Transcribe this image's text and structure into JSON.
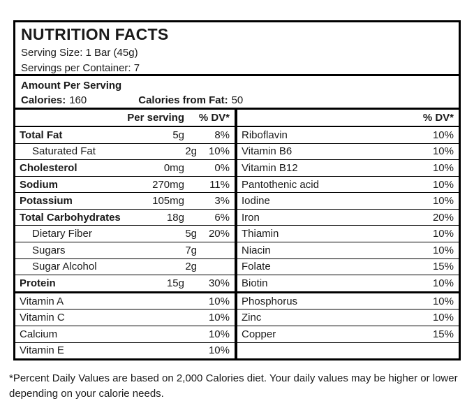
{
  "label": {
    "title": "NUTRITION FACTS",
    "serving_size": "Serving Size: 1 Bar (45g)",
    "servings_per_container": "Servings per Container: 7",
    "amount_per_serving": "Amount Per Serving",
    "calories_label": "Calories:",
    "calories_value": "160",
    "calories_from_fat_label": "Calories from Fat:",
    "calories_from_fat_value": "50"
  },
  "left_table": {
    "headers": {
      "name": "",
      "per_serving": "Per serving",
      "dv": "% DV*"
    },
    "rows": [
      {
        "name": "Total Fat",
        "amount": "5g",
        "dv": "8%",
        "bold": true
      },
      {
        "name": "Saturated Fat",
        "amount": "2g",
        "dv": "10%",
        "indent": true
      },
      {
        "name": "Cholesterol",
        "amount": "0mg",
        "dv": "0%",
        "bold": true
      },
      {
        "name": "Sodium",
        "amount": "270mg",
        "dv": "11%",
        "bold": true
      },
      {
        "name": "Potassium",
        "amount": "105mg",
        "dv": "3%",
        "bold": true
      },
      {
        "name": "Total Carbohydrates",
        "amount": "18g",
        "dv": "6%",
        "bold": true
      },
      {
        "name": "Dietary Fiber",
        "amount": "5g",
        "dv": "20%",
        "indent": true
      },
      {
        "name": "Sugars",
        "amount": "7g",
        "dv": "",
        "indent": true
      },
      {
        "name": "Sugar Alcohol",
        "amount": "2g",
        "dv": "",
        "indent": true
      },
      {
        "name": "Protein",
        "amount": "15g",
        "dv": "30%",
        "bold": true,
        "thick_below": true
      },
      {
        "name": "Vitamin A",
        "amount": "",
        "dv": "10%"
      },
      {
        "name": "Vitamin C",
        "amount": "",
        "dv": "10%"
      },
      {
        "name": "Calcium",
        "amount": "",
        "dv": "10%"
      },
      {
        "name": "Vitamin E",
        "amount": "",
        "dv": "10%"
      }
    ]
  },
  "right_table": {
    "headers": {
      "name": "",
      "dv": "% DV*"
    },
    "rows": [
      {
        "name": "Riboflavin",
        "dv": "10%"
      },
      {
        "name": "Vitamin B6",
        "dv": "10%"
      },
      {
        "name": "Vitamin B12",
        "dv": "10%"
      },
      {
        "name": "Pantothenic acid",
        "dv": "10%"
      },
      {
        "name": "Iodine",
        "dv": "10%"
      },
      {
        "name": "Iron",
        "dv": "20%"
      },
      {
        "name": "Thiamin",
        "dv": "10%"
      },
      {
        "name": "Niacin",
        "dv": "10%"
      },
      {
        "name": "Folate",
        "dv": "15%"
      },
      {
        "name": "Biotin",
        "dv": "10%",
        "thick_below": true
      },
      {
        "name": "Phosphorus",
        "dv": "10%"
      },
      {
        "name": "Zinc",
        "dv": "10%"
      },
      {
        "name": "Copper",
        "dv": "15%"
      },
      {
        "name": "",
        "dv": ""
      }
    ]
  },
  "footnote": "*Percent Daily Values are based on 2,000 Calories diet. Your daily values may be higher or lower depending on your calorie needs.",
  "colors": {
    "text": "#1a1a1a",
    "border": "#000000",
    "background": "#ffffff"
  }
}
